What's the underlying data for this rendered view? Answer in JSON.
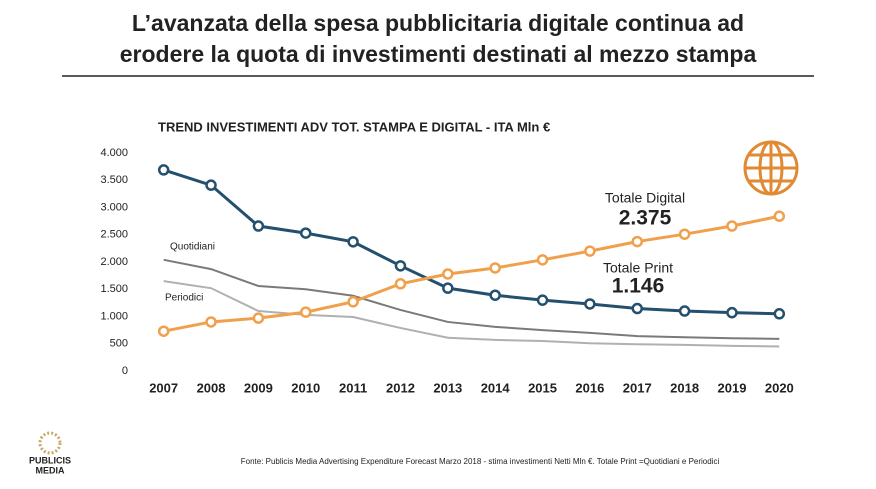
{
  "page_title": [
    "L’avanzata della spesa pubblicitaria digitale continua ad",
    "erodere la quota di investimenti destinati al mezzo stampa"
  ],
  "source": "Fonte: Publicis Media Advertising Expenditure Forecast Marzo 2018 - stima investimenti Netti Mln €. Totale Print =Quotidiani e Periodici",
  "logo": [
    "PUBLICIS",
    "MEDIA"
  ],
  "chart_data": {
    "type": "line",
    "title": "TREND INVESTIMENTI ADV TOT. STAMPA E DIGITAL - ITA Mln €",
    "categories": [
      "2007",
      "2008",
      "2009",
      "2010",
      "2011",
      "2012",
      "2013",
      "2014",
      "2015",
      "2016",
      "2017",
      "2018",
      "2019",
      "2020"
    ],
    "ylim": [
      0,
      4000
    ],
    "yticks": [
      0,
      {
        "value": 500,
        "label": "500"
      },
      {
        "value": 1000,
        "label": "1.000"
      },
      {
        "value": 1500,
        "label": "1.500"
      },
      {
        "value": 2000,
        "label": "2.000"
      },
      {
        "value": 2500,
        "label": "2.500"
      },
      {
        "value": 3000,
        "label": "3.000"
      },
      {
        "value": 3500,
        "label": "3.500"
      },
      {
        "value": 4000,
        "label": "4.000"
      }
    ],
    "grid": false,
    "series": [
      {
        "name": "Quotidiani",
        "color": "#7a7a7a",
        "markers": false,
        "values": [
          2040,
          1870,
          1560,
          1500,
          1380,
          1120,
          900,
          810,
          750,
          700,
          640,
          620,
          600,
          590
        ]
      },
      {
        "name": "Periodici",
        "color": "#b0b0b0",
        "markers": false,
        "values": [
          1650,
          1520,
          1100,
          1030,
          990,
          790,
          610,
          570,
          550,
          510,
          490,
          480,
          460,
          450
        ]
      },
      {
        "name": "Totale Print",
        "color": "#24506d",
        "markers": true,
        "values": [
          3690,
          3410,
          2660,
          2530,
          2370,
          1930,
          1520,
          1390,
          1300,
          1230,
          1146,
          1100,
          1070,
          1050
        ]
      },
      {
        "name": "Totale Digital",
        "color": "#f0a04b",
        "markers": true,
        "values": [
          730,
          900,
          970,
          1080,
          1270,
          1600,
          1780,
          1890,
          2040,
          2200,
          2375,
          2510,
          2660,
          2840
        ]
      }
    ],
    "annotations": [
      {
        "series": 2,
        "text": "1.146"
      },
      {
        "series": 3,
        "text": "2.375"
      }
    ]
  }
}
